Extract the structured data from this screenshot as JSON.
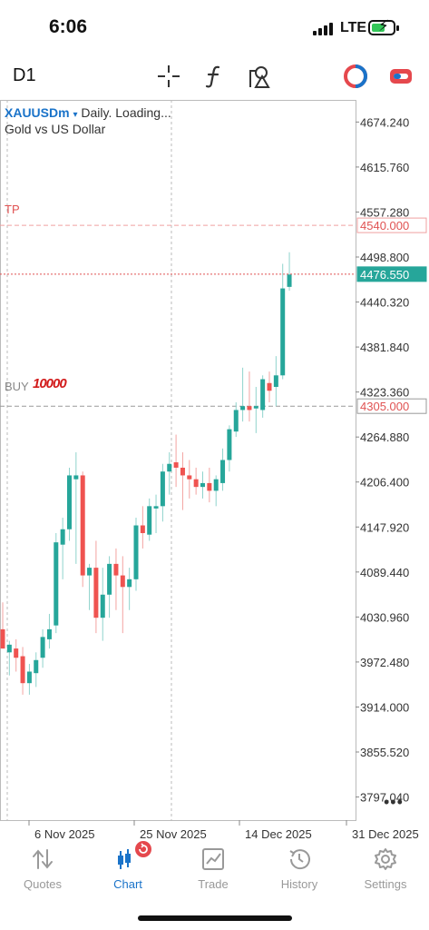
{
  "status_bar": {
    "time": "6:06",
    "carrier": "LTE"
  },
  "toolbar": {
    "timeframe": "D1",
    "icons": [
      "crosshair-icon",
      "function-icon",
      "objects-icon",
      "account-icon",
      "trade-toggle-icon"
    ]
  },
  "chart": {
    "symbol": "XAUUSDm",
    "dropdown_glyph": "▾",
    "period_status": "Daily. Loading...",
    "description": "Gold vs US Dollar",
    "tp_label": "TP",
    "buy_label": "BUY",
    "buy_scribble": "10000",
    "more_glyph": "•••",
    "colors": {
      "bull": "#26a69a",
      "bear": "#ef5350",
      "tp_line": "#e05252",
      "price_line": "#e05252",
      "buy_line": "#999999",
      "price_tag_bg": "#26a69a"
    }
  },
  "chart_data": {
    "type": "candlestick",
    "symbol": "XAUUSDm",
    "timeframe": "D1",
    "y_ticks": [
      "4674.240",
      "4615.760",
      "4557.280",
      "4498.800",
      "4440.320",
      "4381.840",
      "4323.360",
      "4264.880",
      "4206.400",
      "4147.920",
      "4089.440",
      "4030.960",
      "3972.480",
      "3914.000",
      "3855.520",
      "3797.040"
    ],
    "x_ticks": [
      "6 Nov 2025",
      "25 Nov 2025",
      "14 Dec 2025",
      "31 Dec 2025"
    ],
    "ylim": [
      3767,
      4703
    ],
    "levels": {
      "tp": "4540.000",
      "current": "4476.550",
      "buy": "4305.000"
    },
    "candles": [
      {
        "o": 4015,
        "h": 4050,
        "l": 3990,
        "c": 3990
      },
      {
        "o": 3985,
        "h": 4000,
        "l": 3955,
        "c": 3995
      },
      {
        "o": 3990,
        "h": 4002,
        "l": 3960,
        "c": 3978
      },
      {
        "o": 3980,
        "h": 3992,
        "l": 3930,
        "c": 3945
      },
      {
        "o": 3945,
        "h": 3970,
        "l": 3930,
        "c": 3960
      },
      {
        "o": 3958,
        "h": 3985,
        "l": 3940,
        "c": 3975
      },
      {
        "o": 3978,
        "h": 4015,
        "l": 3965,
        "c": 4005
      },
      {
        "o": 4002,
        "h": 4035,
        "l": 3990,
        "c": 4015
      },
      {
        "o": 4020,
        "h": 4140,
        "l": 4010,
        "c": 4128
      },
      {
        "o": 4125,
        "h": 4160,
        "l": 4080,
        "c": 4145
      },
      {
        "o": 4145,
        "h": 4225,
        "l": 4130,
        "c": 4215
      },
      {
        "o": 4210,
        "h": 4245,
        "l": 4100,
        "c": 4215
      },
      {
        "o": 4215,
        "h": 4220,
        "l": 4070,
        "c": 4085
      },
      {
        "o": 4085,
        "h": 4100,
        "l": 4040,
        "c": 4095
      },
      {
        "o": 4095,
        "h": 4130,
        "l": 4010,
        "c": 4030
      },
      {
        "o": 4030,
        "h": 4095,
        "l": 4000,
        "c": 4060
      },
      {
        "o": 4060,
        "h": 4110,
        "l": 4030,
        "c": 4100
      },
      {
        "o": 4100,
        "h": 4120,
        "l": 4040,
        "c": 4085
      },
      {
        "o": 4085,
        "h": 4110,
        "l": 4010,
        "c": 4070
      },
      {
        "o": 4070,
        "h": 4095,
        "l": 4040,
        "c": 4080
      },
      {
        "o": 4080,
        "h": 4160,
        "l": 4065,
        "c": 4150
      },
      {
        "o": 4150,
        "h": 4175,
        "l": 4120,
        "c": 4140
      },
      {
        "o": 4138,
        "h": 4185,
        "l": 4130,
        "c": 4175
      },
      {
        "o": 4172,
        "h": 4190,
        "l": 4140,
        "c": 4175
      },
      {
        "o": 4175,
        "h": 4230,
        "l": 4155,
        "c": 4220
      },
      {
        "o": 4220,
        "h": 4245,
        "l": 4190,
        "c": 4230
      },
      {
        "o": 4232,
        "h": 4268,
        "l": 4200,
        "c": 4225
      },
      {
        "o": 4225,
        "h": 4245,
        "l": 4170,
        "c": 4215
      },
      {
        "o": 4215,
        "h": 4235,
        "l": 4185,
        "c": 4210
      },
      {
        "o": 4210,
        "h": 4225,
        "l": 4190,
        "c": 4200
      },
      {
        "o": 4200,
        "h": 4220,
        "l": 4185,
        "c": 4205
      },
      {
        "o": 4205,
        "h": 4225,
        "l": 4180,
        "c": 4195
      },
      {
        "o": 4195,
        "h": 4215,
        "l": 4175,
        "c": 4210
      },
      {
        "o": 4205,
        "h": 4250,
        "l": 4195,
        "c": 4235
      },
      {
        "o": 4235,
        "h": 4280,
        "l": 4220,
        "c": 4275
      },
      {
        "o": 4272,
        "h": 4310,
        "l": 4265,
        "c": 4300
      },
      {
        "o": 4300,
        "h": 4355,
        "l": 4285,
        "c": 4305
      },
      {
        "o": 4305,
        "h": 4350,
        "l": 4285,
        "c": 4300
      },
      {
        "o": 4302,
        "h": 4330,
        "l": 4270,
        "c": 4305
      },
      {
        "o": 4300,
        "h": 4345,
        "l": 4290,
        "c": 4340
      },
      {
        "o": 4335,
        "h": 4350,
        "l": 4310,
        "c": 4325
      },
      {
        "o": 4330,
        "h": 4370,
        "l": 4305,
        "c": 4345
      },
      {
        "o": 4345,
        "h": 4490,
        "l": 4340,
        "c": 4458
      },
      {
        "o": 4460,
        "h": 4505,
        "l": 4455,
        "c": 4476
      }
    ]
  },
  "tabbar": {
    "tabs": [
      {
        "label": "Quotes",
        "icon": "quotes-icon",
        "active": false
      },
      {
        "label": "Chart",
        "icon": "chart-icon",
        "active": true
      },
      {
        "label": "Trade",
        "icon": "trade-icon",
        "active": false
      },
      {
        "label": "History",
        "icon": "history-icon",
        "active": false
      },
      {
        "label": "Settings",
        "icon": "settings-icon",
        "active": false
      }
    ]
  }
}
